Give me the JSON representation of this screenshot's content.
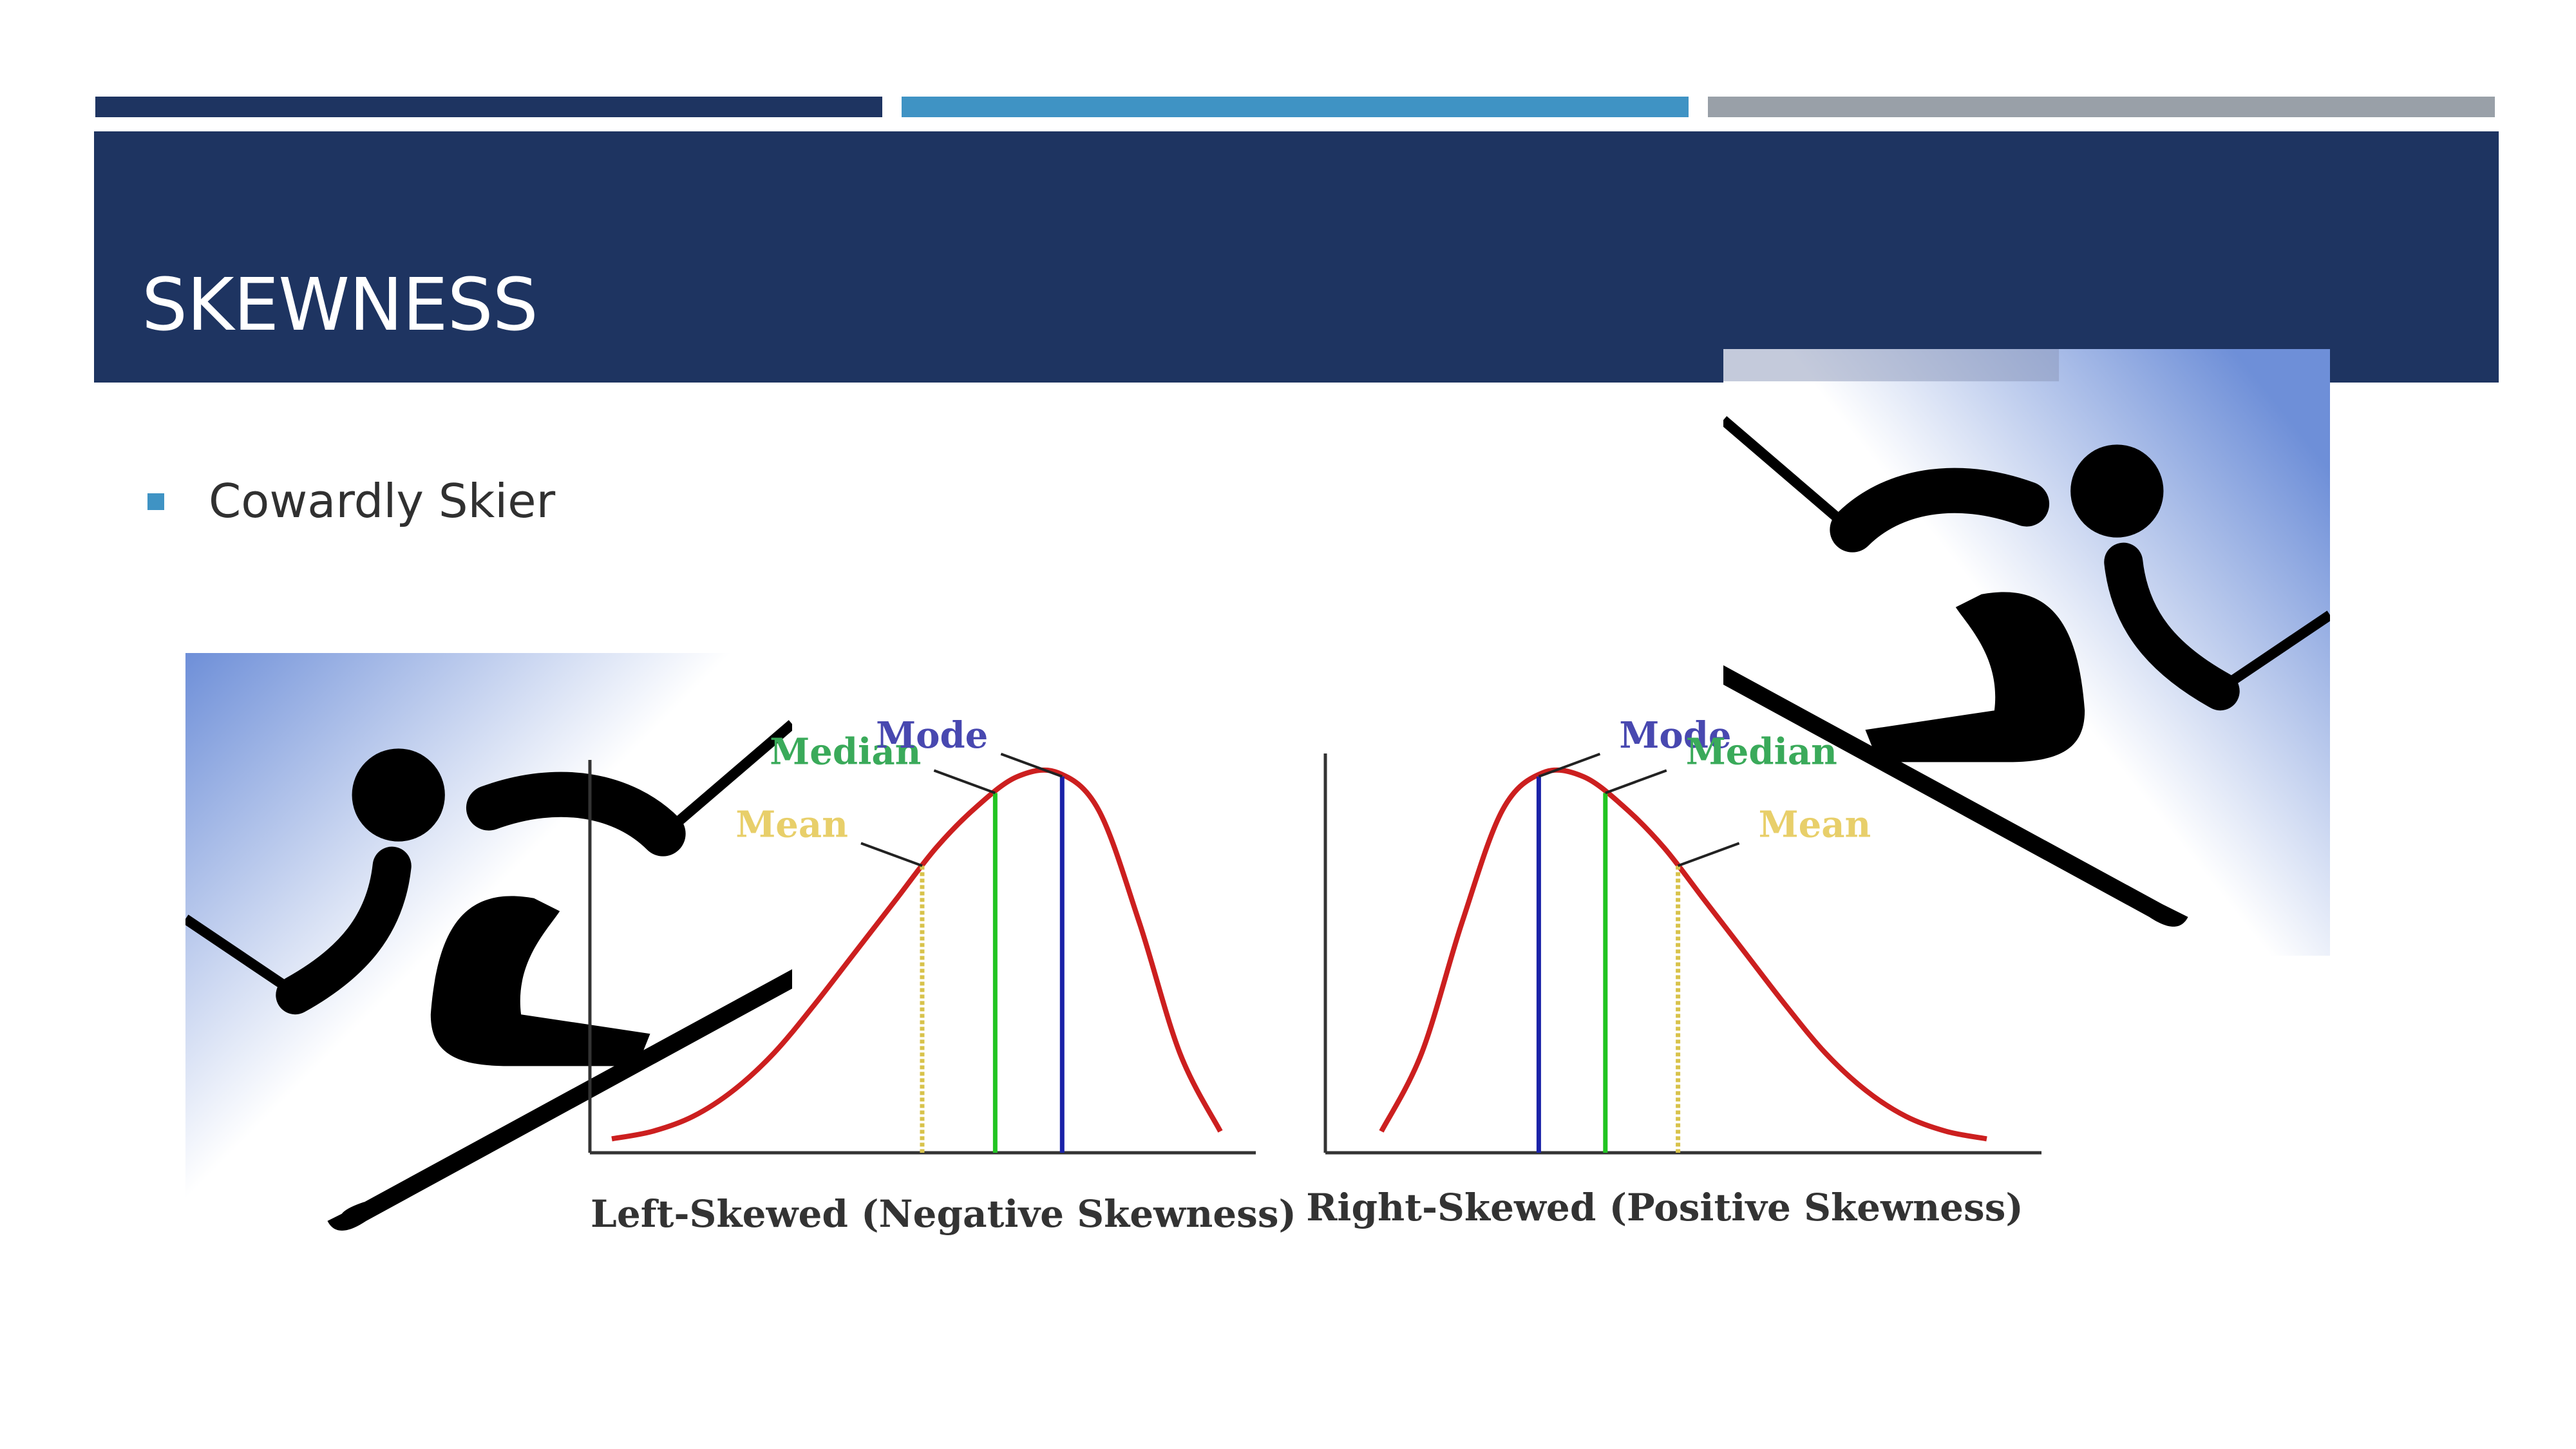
{
  "slide": {
    "title": "SKEWNESS",
    "bullets": [
      "Cowardly Skier"
    ]
  },
  "colors": {
    "banner": "#1e3461",
    "stripe_dark": "#1e3461",
    "stripe_blue": "#3f93c4",
    "stripe_gray": "#99a0a8",
    "curve": "#cc1f1f",
    "mode_line": "#1a22a8",
    "median_line": "#21c421",
    "mean_line": "#d8c24a",
    "mode_label": "#4848b0",
    "median_label": "#3aaa5a",
    "mean_label": "#e8cf6a",
    "skier_gradient_blue": "#6e8fd8"
  },
  "icons": [
    "skier-icon",
    "skier-icon"
  ],
  "chart_data": [
    {
      "type": "line",
      "caption": "Left-Skewed (Negative Skewness)",
      "series": [
        {
          "values": [
            0.02,
            0.04,
            0.08,
            0.15,
            0.25,
            0.38,
            0.52,
            0.66,
            0.8,
            0.91,
            0.99,
            1.0,
            0.9,
            0.6,
            0.25,
            0.04
          ]
        }
      ],
      "markers": [
        {
          "label": "Mean",
          "position": 0.51
        },
        {
          "label": "Median",
          "position": 0.63
        },
        {
          "label": "Mode",
          "position": 0.74
        }
      ]
    },
    {
      "type": "line",
      "caption": "Right-Skewed (Positive Skewness)",
      "series": [
        {
          "values": [
            0.04,
            0.25,
            0.6,
            0.9,
            1.0,
            0.99,
            0.91,
            0.8,
            0.66,
            0.52,
            0.38,
            0.25,
            0.15,
            0.08,
            0.04,
            0.02
          ]
        }
      ],
      "markers": [
        {
          "label": "Mode",
          "position": 0.26
        },
        {
          "label": "Median",
          "position": 0.37
        },
        {
          "label": "Mean",
          "position": 0.49
        }
      ]
    }
  ]
}
